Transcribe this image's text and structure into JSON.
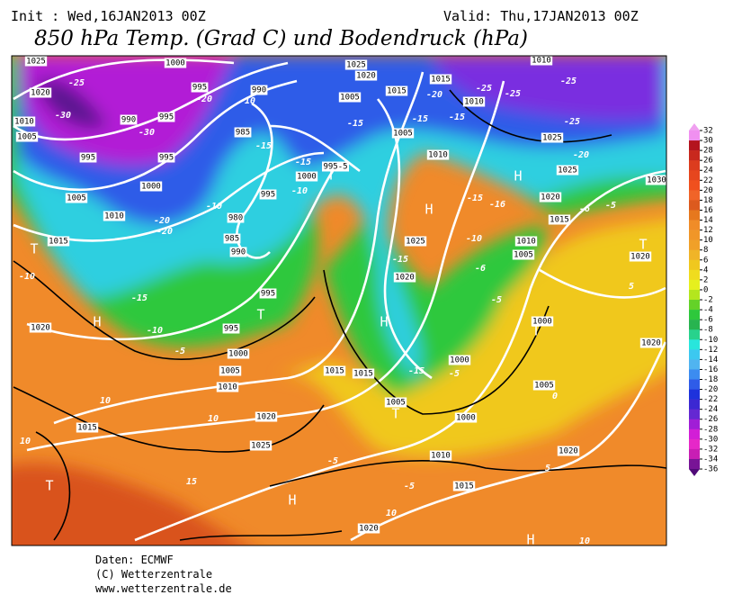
{
  "header": {
    "init": "Init : Wed,16JAN2013 00Z",
    "valid": "Valid: Thu,17JAN2013 00Z",
    "title": "850 hPa Temp. (Grad C) und Bodendruck (hPa)"
  },
  "footer": {
    "source": "Daten: ECMWF",
    "copyright": "(C) Wetterzentrale",
    "url": "www.wetterzentrale.de"
  },
  "colorbar": {
    "labels": [
      32,
      30,
      28,
      26,
      24,
      22,
      20,
      18,
      16,
      14,
      12,
      10,
      8,
      6,
      4,
      2,
      0,
      -2,
      -4,
      -6,
      -8,
      -10,
      -12,
      -14,
      -16,
      -18,
      -20,
      -22,
      -24,
      -26,
      -28,
      -30,
      -32,
      -34,
      -36
    ]
  },
  "map_labels": [
    "1025",
    "1020",
    "1010",
    "1005",
    "-25",
    "-30",
    "990",
    "995",
    "-30",
    "995",
    "995",
    "1000",
    "995",
    "-20",
    "-10",
    "990",
    "985",
    "-15",
    "1005",
    "1010",
    "1000",
    "-10",
    "980",
    "985",
    "990",
    "-20",
    "-20",
    "1015",
    "T",
    "-10",
    "-15",
    "H",
    "1020",
    "-10",
    "995",
    "T",
    "995",
    "-5",
    "1000",
    "1005",
    "1010",
    "1015",
    "1015",
    "10",
    "1015",
    "10",
    "1020",
    "10",
    "1025",
    "T",
    "15",
    "H",
    "-5",
    "-5",
    "1010",
    "1015",
    "10",
    "1020",
    "H",
    "10",
    "5",
    "1020",
    "1000",
    "1005",
    "T",
    "-5",
    "-15",
    "1000",
    "H",
    "-5",
    "-6",
    "1005",
    "1010",
    "-10",
    "-15",
    "1020",
    "1025",
    "-15",
    "-16",
    "1015",
    "1020",
    "H",
    "1025",
    "-20",
    "1025",
    "-25",
    "-25",
    "-25",
    "-25",
    "1010",
    "1010",
    "1015",
    "1015",
    "-20",
    "1025",
    "1020",
    "1005",
    "-15",
    "-15",
    "-15",
    "1005",
    "1010",
    "995-5",
    "-15",
    "1000",
    "-10",
    "995",
    "T",
    "H",
    "T",
    "1020",
    "T",
    "1000",
    "1020",
    "1005",
    "0",
    "5",
    "-6",
    "1030",
    "-5"
  ]
}
